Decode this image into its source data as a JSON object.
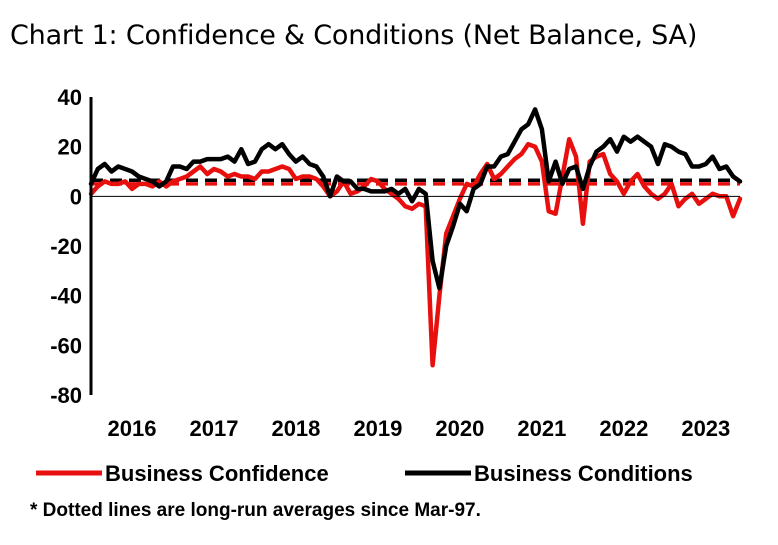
{
  "chart_data": {
    "type": "line",
    "title": "Chart 1: Confidence & Conditions (Net Balance, SA)",
    "footnote": "* Dotted lines are long-run averages since Mar-97.",
    "xlabel": "",
    "ylabel": "",
    "ylim": [
      -80,
      40
    ],
    "yticks": [
      40,
      20,
      0,
      -20,
      -40,
      -60,
      -80
    ],
    "xticks": [
      "2016",
      "2017",
      "2018",
      "2019",
      "2020",
      "2021",
      "2022",
      "2023"
    ],
    "x_start": 2016.0,
    "x_end": 2023.917,
    "zero_line": true,
    "reference_lines": [
      {
        "name": "Business Conditions long-run average",
        "value": 6.5,
        "color": "#000000"
      },
      {
        "name": "Business Confidence long-run average",
        "value": 5.0,
        "color": "#e8100e"
      }
    ],
    "series": [
      {
        "name": "Business Confidence",
        "color": "#e8100e",
        "x": [
          2016.0,
          2016.083,
          2016.167,
          2016.25,
          2016.333,
          2016.417,
          2016.5,
          2016.583,
          2016.667,
          2016.75,
          2016.833,
          2016.917,
          2017.0,
          2017.083,
          2017.167,
          2017.25,
          2017.333,
          2017.417,
          2017.5,
          2017.583,
          2017.667,
          2017.75,
          2017.833,
          2017.917,
          2018.0,
          2018.083,
          2018.167,
          2018.25,
          2018.333,
          2018.417,
          2018.5,
          2018.583,
          2018.667,
          2018.75,
          2018.833,
          2018.917,
          2019.0,
          2019.083,
          2019.167,
          2019.25,
          2019.333,
          2019.417,
          2019.5,
          2019.583,
          2019.667,
          2019.75,
          2019.833,
          2019.917,
          2020.0,
          2020.083,
          2020.167,
          2020.25,
          2020.333,
          2020.417,
          2020.5,
          2020.583,
          2020.667,
          2020.75,
          2020.833,
          2020.917,
          2021.0,
          2021.083,
          2021.167,
          2021.25,
          2021.333,
          2021.417,
          2021.5,
          2021.583,
          2021.667,
          2021.75,
          2021.833,
          2021.917,
          2022.0,
          2022.083,
          2022.167,
          2022.25,
          2022.333,
          2022.417,
          2022.5,
          2022.583,
          2022.667,
          2022.75,
          2022.833,
          2022.917,
          2023.0,
          2023.083,
          2023.167,
          2023.25,
          2023.333,
          2023.417,
          2023.5,
          2023.583,
          2023.667,
          2023.75,
          2023.833,
          2023.917
        ],
        "values": [
          1,
          4,
          6,
          5,
          5,
          6,
          3,
          5,
          5,
          4,
          6,
          4,
          6,
          7,
          8,
          10,
          12,
          9,
          11,
          10,
          8,
          9,
          8,
          8,
          7,
          10,
          10,
          11,
          12,
          11,
          7,
          8,
          8,
          7,
          4,
          0,
          2,
          6,
          1,
          2,
          4,
          7,
          6,
          3,
          1,
          -1,
          -4,
          -5,
          -3,
          -4,
          -68,
          -40,
          -15,
          -8,
          -1,
          5,
          4,
          9,
          13,
          7,
          9,
          12,
          15,
          17,
          21,
          20,
          14,
          -6,
          -7,
          8,
          23,
          16,
          -11,
          14,
          16,
          17,
          9,
          6,
          1,
          6,
          9,
          4,
          1,
          -1,
          1,
          5,
          -4,
          -1,
          1,
          -3,
          -1,
          1,
          0,
          0,
          -8,
          -1
        ]
      },
      {
        "name": "Business Conditions",
        "color": "#000000",
        "x": [
          2016.0,
          2016.083,
          2016.167,
          2016.25,
          2016.333,
          2016.417,
          2016.5,
          2016.583,
          2016.667,
          2016.75,
          2016.833,
          2016.917,
          2017.0,
          2017.083,
          2017.167,
          2017.25,
          2017.333,
          2017.417,
          2017.5,
          2017.583,
          2017.667,
          2017.75,
          2017.833,
          2017.917,
          2018.0,
          2018.083,
          2018.167,
          2018.25,
          2018.333,
          2018.417,
          2018.5,
          2018.583,
          2018.667,
          2018.75,
          2018.833,
          2018.917,
          2019.0,
          2019.083,
          2019.167,
          2019.25,
          2019.333,
          2019.417,
          2019.5,
          2019.583,
          2019.667,
          2019.75,
          2019.833,
          2019.917,
          2020.0,
          2020.083,
          2020.167,
          2020.25,
          2020.333,
          2020.417,
          2020.5,
          2020.583,
          2020.667,
          2020.75,
          2020.833,
          2020.917,
          2021.0,
          2021.083,
          2021.167,
          2021.25,
          2021.333,
          2021.417,
          2021.5,
          2021.583,
          2021.667,
          2021.75,
          2021.833,
          2021.917,
          2022.0,
          2022.083,
          2022.167,
          2022.25,
          2022.333,
          2022.417,
          2022.5,
          2022.583,
          2022.667,
          2022.75,
          2022.833,
          2022.917,
          2023.0,
          2023.083,
          2023.167,
          2023.25,
          2023.333,
          2023.417,
          2023.5,
          2023.583,
          2023.667,
          2023.75,
          2023.833,
          2023.917
        ],
        "values": [
          5,
          11,
          13,
          10,
          12,
          11,
          10,
          8,
          7,
          6,
          4,
          6,
          12,
          12,
          11,
          14,
          14,
          15,
          15,
          15,
          16,
          14,
          19,
          13,
          14,
          19,
          21,
          19,
          21,
          17,
          14,
          16,
          13,
          12,
          8,
          0,
          8,
          6,
          6,
          3,
          3,
          2,
          2,
          2,
          3,
          1,
          3,
          -2,
          3,
          1,
          -26,
          -37,
          -20,
          -12,
          -3,
          -6,
          3,
          5,
          12,
          12,
          16,
          17,
          22,
          27,
          29,
          35,
          27,
          6,
          14,
          5,
          11,
          12,
          3,
          12,
          18,
          20,
          23,
          18,
          24,
          22,
          24,
          22,
          20,
          13,
          21,
          20,
          18,
          17,
          12,
          12,
          13,
          16,
          11,
          12,
          8,
          6
        ]
      }
    ],
    "legend": [
      "Business Confidence",
      "Business Conditions"
    ],
    "legend_position": "bottom"
  }
}
